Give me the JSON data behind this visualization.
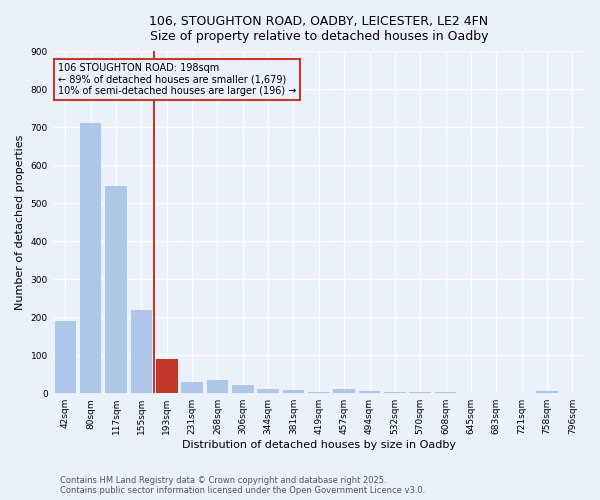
{
  "title_line1": "106, STOUGHTON ROAD, OADBY, LEICESTER, LE2 4FN",
  "title_line2": "Size of property relative to detached houses in Oadby",
  "xlabel": "Distribution of detached houses by size in Oadby",
  "ylabel": "Number of detached properties",
  "categories": [
    "42sqm",
    "80sqm",
    "117sqm",
    "155sqm",
    "193sqm",
    "231sqm",
    "268sqm",
    "306sqm",
    "344sqm",
    "381sqm",
    "419sqm",
    "457sqm",
    "494sqm",
    "532sqm",
    "570sqm",
    "608sqm",
    "645sqm",
    "683sqm",
    "721sqm",
    "758sqm",
    "796sqm"
  ],
  "values": [
    190,
    710,
    545,
    220,
    90,
    30,
    35,
    22,
    10,
    8,
    3,
    10,
    5,
    4,
    3,
    2,
    0,
    0,
    0,
    5,
    0
  ],
  "bar_color": "#aec6e8",
  "highlight_bar_index": 4,
  "highlight_bar_color": "#c0392b",
  "vline_color": "#c0392b",
  "annotation_text": "106 STOUGHTON ROAD: 198sqm\n← 89% of detached houses are smaller (1,679)\n10% of semi-detached houses are larger (196) →",
  "annotation_box_color": "#c0392b",
  "annotation_text_color": "#000000",
  "ylim": [
    0,
    900
  ],
  "yticks": [
    0,
    100,
    200,
    300,
    400,
    500,
    600,
    700,
    800,
    900
  ],
  "footer_line1": "Contains HM Land Registry data © Crown copyright and database right 2025.",
  "footer_line2": "Contains public sector information licensed under the Open Government Licence v3.0.",
  "bg_color": "#eaf1fb",
  "plot_bg_color": "#eaf1fb",
  "grid_color": "#ffffff",
  "title_fontsize": 9,
  "axis_label_fontsize": 8,
  "tick_fontsize": 6.5,
  "footer_fontsize": 6,
  "annotation_fontsize": 7
}
